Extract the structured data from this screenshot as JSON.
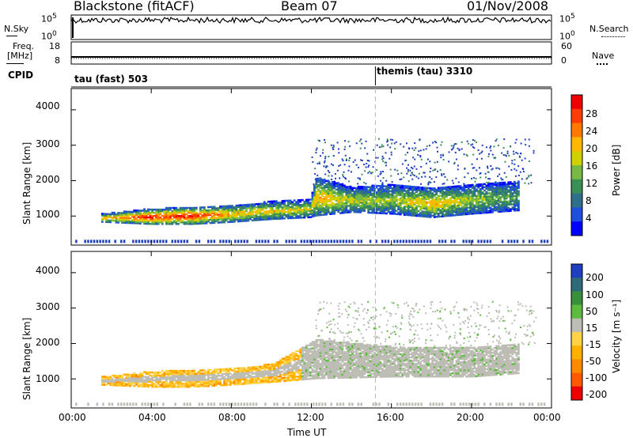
{
  "header": {
    "radar": "Blackstone (fitACF)",
    "beam": "Beam 07",
    "date": "01/Nov/2008"
  },
  "noise_panel": {
    "left_label": "N.Sky",
    "left_ticks": [
      "10^5",
      "10^0"
    ],
    "right_label": "N.Search",
    "right_ticks": [
      "10^5",
      "10^0"
    ]
  },
  "freq_panel": {
    "left_label_1": "Freq.",
    "left_label_2": "[MHz]",
    "left_ticks": [
      "18",
      "8"
    ],
    "right_label": "Nave",
    "right_ticks": [
      "60",
      "0"
    ]
  },
  "cpid_panel": {
    "label": "CPID",
    "segments": [
      {
        "name": "tau (fast) 503",
        "start_hour": 0
      },
      {
        "name": "themis (tau) 3310",
        "start_hour": 15.2
      }
    ]
  },
  "colors": {
    "scale": [
      "#0000ff",
      "#1e4fd6",
      "#2f7e6e",
      "#3a9a3c",
      "#8ec641",
      "#e6d500",
      "#ffb000",
      "#ff7a00",
      "#ff3c00",
      "#ee0000"
    ],
    "ground_scatter": "#bdbdb5"
  },
  "chart_data": [
    {
      "type": "heatmap",
      "name": "Power",
      "ylabel": "Slant Range [km]",
      "xlabel": "Time UT",
      "x_ticks": [
        "00:00",
        "04:00",
        "08:00",
        "12:00",
        "16:00",
        "20:00",
        "00:00"
      ],
      "y_ticks": [
        "1000",
        "2000",
        "3000",
        "4000"
      ],
      "x_range_hours": [
        0,
        24
      ],
      "y_range_km": [
        180,
        4600
      ],
      "colorbar": {
        "label": "Power [dB]",
        "ticks": [
          "4",
          "8",
          "12",
          "16",
          "20",
          "24",
          "28"
        ],
        "range": [
          0,
          32
        ]
      },
      "dominant_band_km": [
        {
          "hour": 1.5,
          "lower": 820,
          "upper": 1050,
          "peak_db": 22
        },
        {
          "hour": 4,
          "lower": 760,
          "upper": 1200,
          "peak_db": 30
        },
        {
          "hour": 6,
          "lower": 760,
          "upper": 1250,
          "peak_db": 30
        },
        {
          "hour": 8,
          "lower": 820,
          "upper": 1300,
          "peak_db": 22
        },
        {
          "hour": 10,
          "lower": 900,
          "upper": 1400,
          "peak_db": 20
        },
        {
          "hour": 11.9,
          "lower": 950,
          "upper": 1450,
          "peak_db": 18
        },
        {
          "hour": 12.2,
          "lower": 1000,
          "upper": 2100,
          "peak_db": 22
        },
        {
          "hour": 14,
          "lower": 1100,
          "upper": 1800,
          "peak_db": 18
        },
        {
          "hour": 16,
          "lower": 1050,
          "upper": 1900,
          "peak_db": 16
        },
        {
          "hour": 18,
          "lower": 950,
          "upper": 1800,
          "peak_db": 22
        },
        {
          "hour": 20,
          "lower": 1050,
          "upper": 1900,
          "peak_db": 16
        },
        {
          "hour": 22.4,
          "lower": 1150,
          "upper": 2000,
          "peak_db": 12
        }
      ]
    },
    {
      "type": "heatmap",
      "name": "Velocity",
      "ylabel": "Slant Range [km]",
      "xlabel": "Time UT",
      "x_ticks": [
        "00:00",
        "04:00",
        "08:00",
        "12:00",
        "16:00",
        "20:00",
        "00:00"
      ],
      "y_ticks": [
        "1000",
        "2000",
        "3000",
        "4000"
      ],
      "x_range_hours": [
        0,
        24
      ],
      "y_range_km": [
        180,
        4600
      ],
      "colorbar": {
        "label": "Velocity [m s⁻¹]",
        "ticks": [
          "200",
          "100",
          "50",
          "15",
          "-15",
          "-50",
          "-100",
          "-200"
        ]
      },
      "dominant_band_km": [
        {
          "hour": 1.5,
          "lower": 820,
          "upper": 1050,
          "velocity": -60
        },
        {
          "hour": 4,
          "lower": 760,
          "upper": 1200,
          "velocity": -80
        },
        {
          "hour": 6,
          "lower": 760,
          "upper": 1250,
          "velocity": -80
        },
        {
          "hour": 8,
          "lower": 820,
          "upper": 1300,
          "velocity": -70
        },
        {
          "hour": 10,
          "lower": 900,
          "upper": 1400,
          "velocity": -60
        },
        {
          "hour": 12.2,
          "lower": 1000,
          "upper": 2100,
          "velocity": 0
        },
        {
          "hour": 16,
          "lower": 1050,
          "upper": 1900,
          "velocity": 0
        },
        {
          "hour": 20,
          "lower": 1050,
          "upper": 1900,
          "velocity": 0
        },
        {
          "hour": 22.4,
          "lower": 1150,
          "upper": 2000,
          "velocity": 0
        }
      ]
    }
  ]
}
